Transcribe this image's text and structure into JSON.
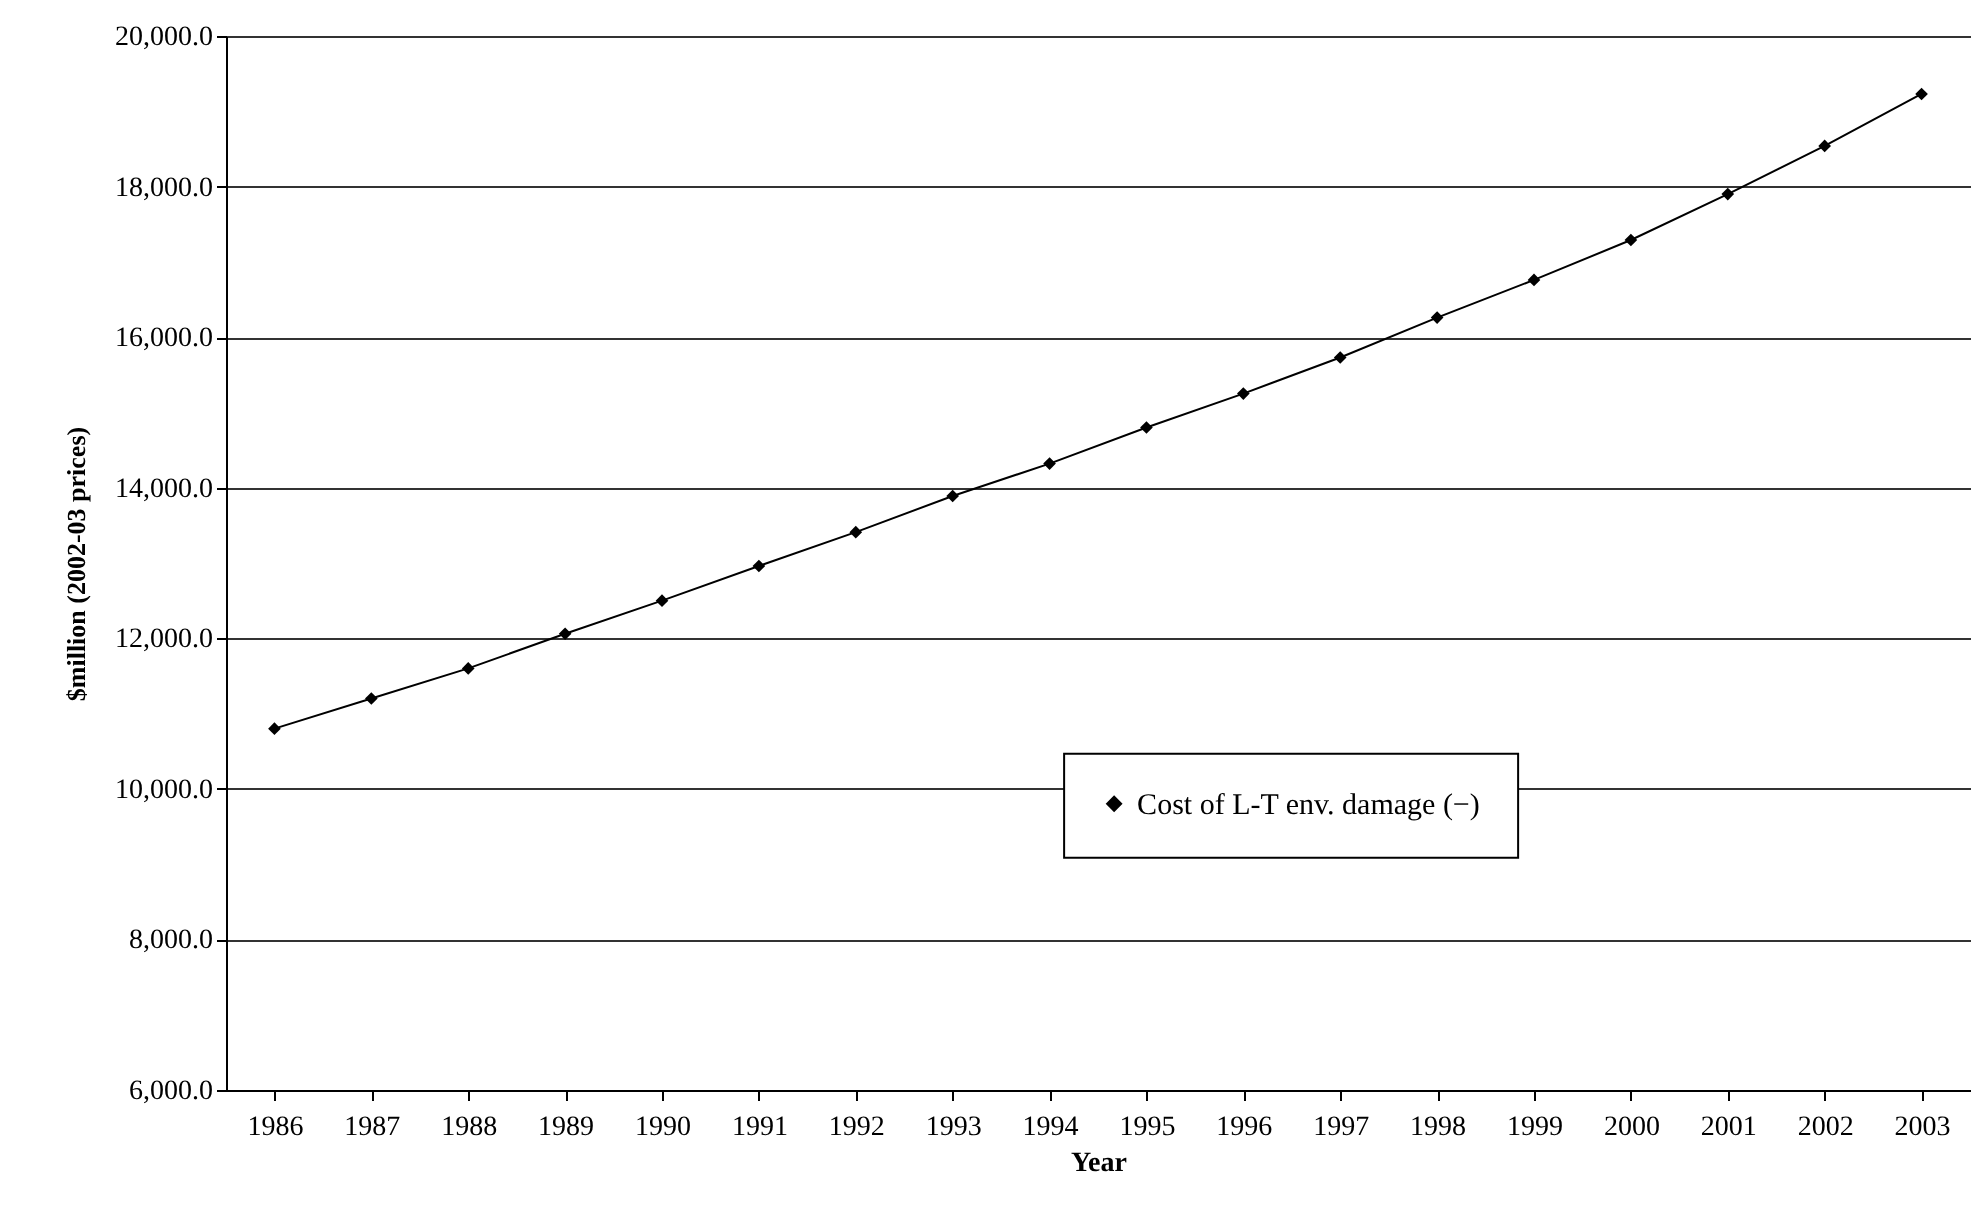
{
  "chart_data": {
    "type": "line",
    "xlabel": "Year",
    "ylabel": "$million (2002-03 prices)",
    "categories": [
      "1986",
      "1987",
      "1988",
      "1989",
      "1990",
      "1991",
      "1992",
      "1993",
      "1994",
      "1995",
      "1996",
      "1997",
      "1998",
      "1999",
      "2000",
      "2001",
      "2002",
      "2003"
    ],
    "series": [
      {
        "name": "Cost of L-T env. damage (−)",
        "color": "#000000",
        "values": [
          10800,
          11200,
          11600,
          12060,
          12500,
          12960,
          13410,
          13890,
          14320,
          14800,
          15250,
          15730,
          16260,
          16760,
          17290,
          17900,
          18540,
          19230
        ]
      }
    ],
    "ylim": [
      6000,
      20000
    ],
    "yticks": [
      {
        "value": 6000,
        "label": "6,000.0"
      },
      {
        "value": 8000,
        "label": "8,000.0"
      },
      {
        "value": 10000,
        "label": "10,000.0"
      },
      {
        "value": 12000,
        "label": "12,000.0"
      },
      {
        "value": 14000,
        "label": "14,000.0"
      },
      {
        "value": 16000,
        "label": "16,000.0"
      },
      {
        "value": 18000,
        "label": "18,000.0"
      },
      {
        "value": 20000,
        "label": "20,000.0"
      }
    ],
    "grid": "y",
    "legend": "bottom",
    "marker": "diamond",
    "line_style": "solid"
  }
}
